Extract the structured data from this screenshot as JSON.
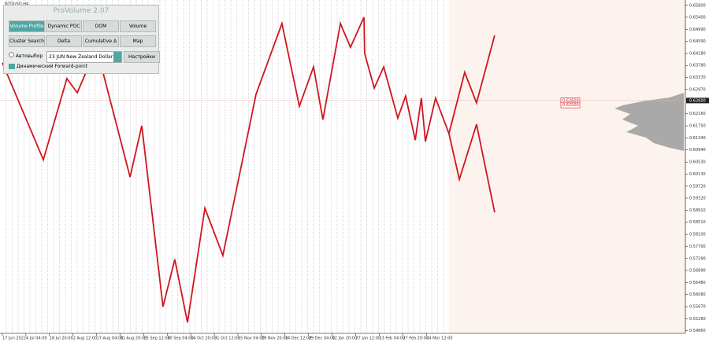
{
  "symbol": "NZDUSD,H4",
  "panel": {
    "title": "ProVolume 2.07",
    "buttons": [
      "Volume Profile",
      "Dynamic POC",
      "DOM",
      "Volume",
      "Cluster Search",
      "Delta",
      "Cumulative Δ",
      "Map"
    ],
    "auto_select": "Автовыбор",
    "instrument": "23 JUN New Zealand Dollar",
    "settings": "Настройки",
    "forward_point": "Динамический Forward-point"
  },
  "chart_data": {
    "type": "line",
    "xticks": [
      {
        "value": 0,
        "label": "17 Jun 2022"
      },
      {
        "value": 1,
        "label": "4 Jul 04:00"
      },
      {
        "value": 2,
        "label": "18 Jul 20:00"
      },
      {
        "value": 3,
        "label": "2 Aug 12:00"
      },
      {
        "value": 4,
        "label": "17 Aug 04:00"
      },
      {
        "value": 5,
        "label": "31 Aug 20:00"
      },
      {
        "value": 6,
        "label": "15 Sep 12:00"
      },
      {
        "value": 7,
        "label": "30 Sep 04:00"
      },
      {
        "value": 8,
        "label": "14 Oct 20:00"
      },
      {
        "value": 9,
        "label": "31 Oct 12:00"
      },
      {
        "value": 10,
        "label": "15 Nov 04:00"
      },
      {
        "value": 11,
        "label": "29 Nov 20:00"
      },
      {
        "value": 12,
        "label": "14 Dec 12:00"
      },
      {
        "value": 13,
        "label": "29 Dec 04:00"
      },
      {
        "value": 14,
        "label": "12 Jan 20:00"
      },
      {
        "value": 15,
        "label": "27 Jan 12:00"
      },
      {
        "value": 16,
        "label": "13 Feb 04:00"
      },
      {
        "value": 17,
        "label": "27 Feb 20:00"
      },
      {
        "value": 18,
        "label": "14 Mar 12:00"
      }
    ],
    "xlim": [
      0,
      28.93
    ],
    "ylim": [
      0.548,
      0.659
    ],
    "yticks": [
      {
        "value": 0.5486,
        "label": "0.54860"
      },
      {
        "value": 0.5526,
        "label": "0.55260"
      },
      {
        "value": 0.5567,
        "label": "0.55670"
      },
      {
        "value": 0.5608,
        "label": "0.56080"
      },
      {
        "value": 0.5648,
        "label": "0.56480"
      },
      {
        "value": 0.5689,
        "label": "0.56890"
      },
      {
        "value": 0.5729,
        "label": "0.57290"
      },
      {
        "value": 0.577,
        "label": "0.57700"
      },
      {
        "value": 0.581,
        "label": "0.58100"
      },
      {
        "value": 0.5851,
        "label": "0.58510"
      },
      {
        "value": 0.5891,
        "label": "0.58910"
      },
      {
        "value": 0.5932,
        "label": "0.59320"
      },
      {
        "value": 0.5972,
        "label": "0.59720"
      },
      {
        "value": 0.6013,
        "label": "0.60130"
      },
      {
        "value": 0.6053,
        "label": "0.60530"
      },
      {
        "value": 0.6094,
        "label": "0.60940"
      },
      {
        "value": 0.6134,
        "label": "0.61340"
      },
      {
        "value": 0.6175,
        "label": "0.61750"
      },
      {
        "value": 0.6216,
        "label": "0.62160"
      },
      {
        "value": 0.6297,
        "label": "0.62970"
      },
      {
        "value": 0.6337,
        "label": "0.63370"
      },
      {
        "value": 0.6378,
        "label": "0.63780"
      },
      {
        "value": 0.6418,
        "label": "0.64180"
      },
      {
        "value": 0.6459,
        "label": "0.64590"
      },
      {
        "value": 0.6499,
        "label": "0.64990"
      },
      {
        "value": 0.654,
        "label": "0.65400"
      },
      {
        "value": 0.658,
        "label": "0.65800"
      }
    ],
    "current_price": {
      "value": 0.626,
      "label": "0.62600"
    },
    "levels": [
      {
        "value": 0.626,
        "label": "0.62600"
      },
      {
        "value": 0.625,
        "label": "0.62500"
      }
    ],
    "series": [
      {
        "name": "ZigZag",
        "color": "#d0161e",
        "x": [
          0,
          1.74,
          2.74,
          3.18,
          3.58,
          4.08,
          5.42,
          5.92,
          6.82,
          7.32,
          7.86,
          8.6,
          9.36,
          10.77,
          11.87,
          12.61,
          13.21,
          13.61,
          14.35,
          14.78,
          15.35,
          15.38,
          15.79,
          16.19,
          16.79,
          17.12,
          17.53,
          17.79,
          17.96,
          18.39,
          18.96
        ],
        "values": [
          0.6387,
          0.6061,
          0.6334,
          0.6286,
          0.636,
          0.6413,
          0.6003,
          0.6175,
          0.5567,
          0.5726,
          0.5514,
          0.5898,
          0.5739,
          0.6281,
          0.6519,
          0.6241,
          0.6373,
          0.6196,
          0.6519,
          0.6439,
          0.654,
          0.6418,
          0.6302,
          0.6373,
          0.6201,
          0.6275,
          0.6127,
          0.6268,
          0.6122,
          0.6268,
          0.6149
        ]
      },
      {
        "name": "Forecast up",
        "color": "#d0161e",
        "x": [
          18.96,
          19.63,
          20.13,
          20.9
        ],
        "values": [
          0.6149,
          0.6355,
          0.6252,
          0.6479
        ]
      },
      {
        "name": "Forecast down",
        "color": "#d0161e",
        "x": [
          18.96,
          19.4,
          20.13,
          20.9
        ],
        "values": [
          0.6149,
          0.5995,
          0.618,
          0.5884
        ]
      }
    ]
  }
}
